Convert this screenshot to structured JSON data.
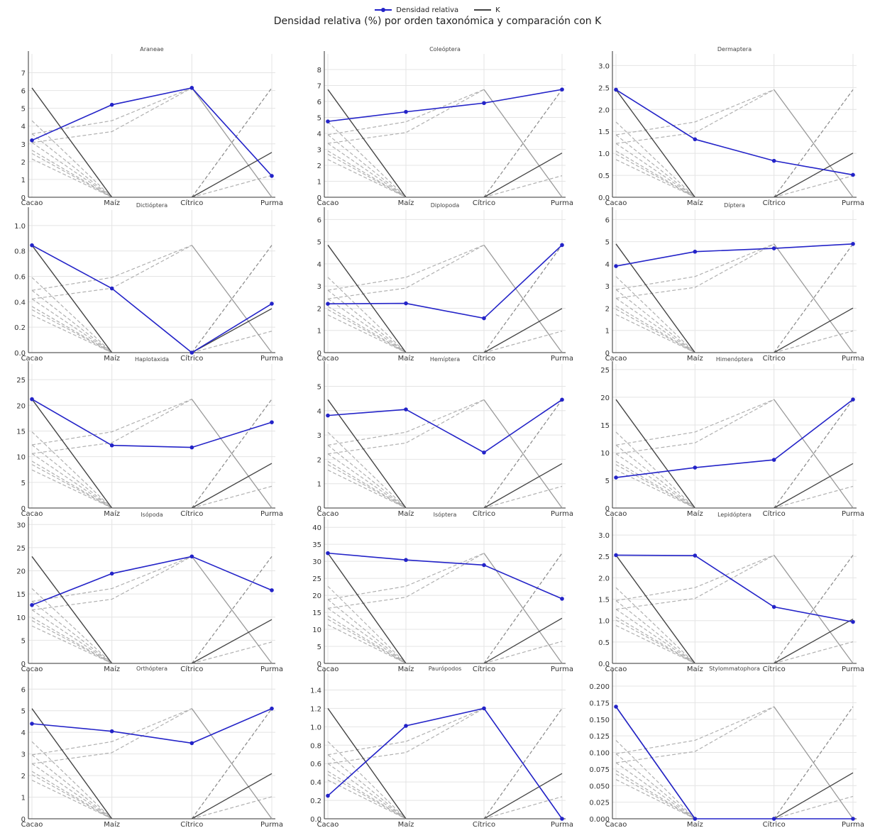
{
  "legend": {
    "series_label": "Densidad relativa",
    "k_label": "K"
  },
  "title": "Densidad relativa (%) por orden taxonómica y comparación con K",
  "colors": {
    "series": "#2323c8",
    "k": "#444444",
    "dashed": "#b0b0b0",
    "grid": "#e4e4e4"
  },
  "chart_data": [
    {
      "type": "line",
      "title": "Araneae",
      "categories": [
        "Cacao",
        "Maíz",
        "Cítrico",
        "Purma"
      ],
      "values": [
        3.2,
        5.2,
        6.15,
        1.2
      ],
      "yticks": [
        0,
        1,
        2,
        3,
        4,
        5,
        6,
        7
      ],
      "ylim": [
        0,
        7.9
      ],
      "k_top": 6.15
    },
    {
      "type": "line",
      "title": "Coleóptera",
      "categories": [
        "Cacao",
        "Maíz",
        "Cítrico",
        "Purma"
      ],
      "values": [
        4.75,
        5.35,
        5.9,
        6.75
      ],
      "yticks": [
        0,
        1,
        2,
        3,
        4,
        5,
        6,
        7,
        8
      ],
      "ylim": [
        0,
        8.8
      ],
      "k_top": 6.75
    },
    {
      "type": "line",
      "title": "Dermaptera",
      "categories": [
        "Cacao",
        "Maíz",
        "Cítrico",
        "Purma"
      ],
      "values": [
        2.45,
        1.32,
        0.83,
        0.51
      ],
      "yticks": [
        "0.0",
        "0.5",
        "1.0",
        "1.5",
        "2.0",
        "2.5",
        "3.0"
      ],
      "ylim": [
        0,
        3.2
      ],
      "k_top": 2.45
    },
    {
      "type": "line",
      "title": "Dictióptera",
      "categories": [
        "Cacao",
        "Maíz",
        "Cítrico",
        "Purma"
      ],
      "values": [
        0.845,
        0.505,
        0.0,
        0.385
      ],
      "yticks": [
        "0.0",
        "0.2",
        "0.4",
        "0.6",
        "0.8",
        "1.0"
      ],
      "ylim": [
        0,
        1.1
      ],
      "k_top": 0.845
    },
    {
      "type": "line",
      "title": "Diplopoda",
      "categories": [
        "Cacao",
        "Maíz",
        "Cítrico",
        "Purma"
      ],
      "values": [
        2.2,
        2.22,
        1.55,
        4.85
      ],
      "yticks": [
        0,
        1,
        2,
        3,
        4,
        5,
        6
      ],
      "ylim": [
        0,
        6.3
      ],
      "k_top": 4.85
    },
    {
      "type": "line",
      "title": "Díptera",
      "categories": [
        "Cacao",
        "Maíz",
        "Cítrico",
        "Purma"
      ],
      "values": [
        3.9,
        4.55,
        4.7,
        4.9
      ],
      "yticks": [
        0,
        1,
        2,
        3,
        4,
        5,
        6
      ],
      "ylim": [
        0,
        6.3
      ],
      "k_top": 4.9
    },
    {
      "type": "line",
      "title": "Haplotaxida",
      "categories": [
        "Cacao",
        "Maíz",
        "Cítrico",
        "Purma"
      ],
      "values": [
        21.2,
        12.2,
        11.8,
        16.7
      ],
      "yticks": [
        0,
        5,
        10,
        15,
        20,
        25
      ],
      "ylim": [
        0,
        27.5
      ],
      "k_top": 21.2
    },
    {
      "type": "line",
      "title": "Hemíptera",
      "categories": [
        "Cacao",
        "Maíz",
        "Cítrico",
        "Purma"
      ],
      "values": [
        3.8,
        4.05,
        2.28,
        4.45
      ],
      "yticks": [
        0,
        1,
        2,
        3,
        4,
        5
      ],
      "ylim": [
        0,
        5.8
      ],
      "k_top": 4.45
    },
    {
      "type": "line",
      "title": "Himenóptera",
      "categories": [
        "Cacao",
        "Maíz",
        "Cítrico",
        "Purma"
      ],
      "values": [
        5.5,
        7.3,
        8.7,
        19.6
      ],
      "yticks": [
        0,
        5,
        10,
        15,
        20,
        25
      ],
      "ylim": [
        0,
        25.5
      ],
      "k_top": 19.6
    },
    {
      "type": "line",
      "title": "Isópoda",
      "categories": [
        "Cacao",
        "Maíz",
        "Cítrico",
        "Purma"
      ],
      "values": [
        12.6,
        19.4,
        23.1,
        15.8
      ],
      "yticks": [
        0,
        5,
        10,
        15,
        20,
        25,
        30
      ],
      "ylim": [
        0,
        30.5
      ],
      "k_top": 23.1
    },
    {
      "type": "line",
      "title": "Isóptera",
      "categories": [
        "Cacao",
        "Maíz",
        "Cítrico",
        "Purma"
      ],
      "values": [
        32.4,
        30.4,
        28.9,
        19.0
      ],
      "yticks": [
        0,
        5,
        10,
        15,
        20,
        25,
        30,
        35,
        40
      ],
      "ylim": [
        0,
        41.5
      ],
      "k_top": 32.4
    },
    {
      "type": "line",
      "title": "Lepidóptera",
      "categories": [
        "Cacao",
        "Maíz",
        "Cítrico",
        "Purma"
      ],
      "values": [
        2.53,
        2.52,
        1.32,
        0.97
      ],
      "yticks": [
        "0.0",
        "0.5",
        "1.0",
        "1.5",
        "2.0",
        "2.5",
        "3.0"
      ],
      "ylim": [
        0,
        3.3
      ],
      "k_top": 2.53
    },
    {
      "type": "line",
      "title": "Orthóptera",
      "categories": [
        "Cacao",
        "Maíz",
        "Cítrico",
        "Purma"
      ],
      "values": [
        4.4,
        4.05,
        3.5,
        5.1
      ],
      "yticks": [
        0,
        1,
        2,
        3,
        4,
        5,
        6
      ],
      "ylim": [
        0,
        6.6
      ],
      "k_top": 5.1
    },
    {
      "type": "line",
      "title": "Paurópodos",
      "categories": [
        "Cacao",
        "Maíz",
        "Cítrico",
        "Purma"
      ],
      "values": [
        0.25,
        1.01,
        1.2,
        0.0
      ],
      "yticks": [
        "0.0",
        "0.2",
        "0.4",
        "0.6",
        "0.8",
        "1.0",
        "1.2",
        "1.4"
      ],
      "ylim": [
        0,
        1.55
      ],
      "k_top": 1.2
    },
    {
      "type": "line",
      "title": "Stylommatophora",
      "categories": [
        "Cacao",
        "Maíz",
        "Cítrico",
        "Purma"
      ],
      "values": [
        0.169,
        0.0,
        0.0,
        0.0
      ],
      "yticks": [
        "0.000",
        "0.025",
        "0.050",
        "0.075",
        "0.100",
        "0.125",
        "0.150",
        "0.175",
        "0.200"
      ],
      "ylim": [
        0,
        0.215
      ],
      "k_top": 0.169
    }
  ]
}
